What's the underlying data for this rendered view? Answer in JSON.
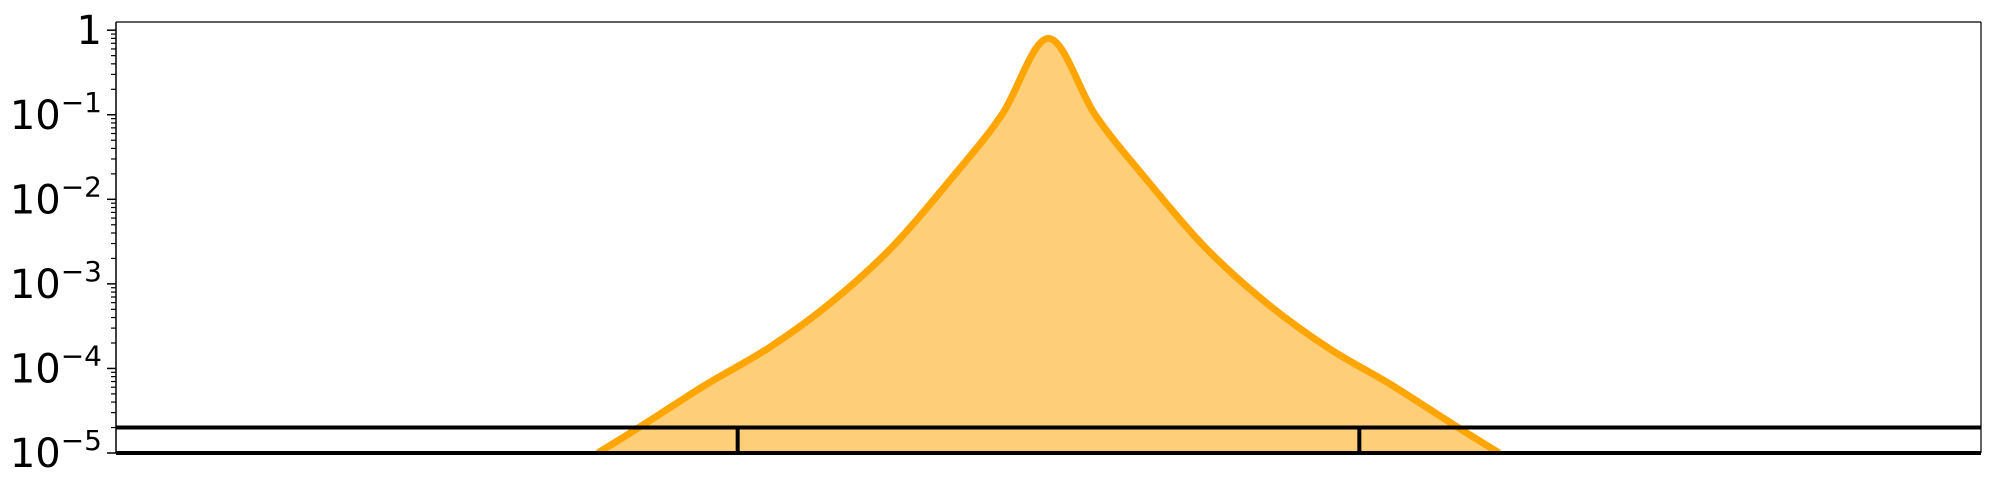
{
  "chart_data": {
    "type": "area",
    "title": "",
    "xlabel": "",
    "ylabel": "",
    "y_scale": "log",
    "ylim": [
      1e-05,
      1.25
    ],
    "xlim": [
      -3,
      3
    ],
    "grid": false,
    "y_ticks": [
      {
        "value": 1,
        "base": "1",
        "exponent": ""
      },
      {
        "value": 0.1,
        "base": "10",
        "exponent": "−1"
      },
      {
        "value": 0.01,
        "base": "10",
        "exponent": "−2"
      },
      {
        "value": 0.001,
        "base": "10",
        "exponent": "−3"
      },
      {
        "value": 0.0001,
        "base": "10",
        "exponent": "−4"
      },
      {
        "value": 1e-05,
        "base": "10",
        "exponent": "−5"
      }
    ],
    "series": [
      {
        "color": "#FFA500",
        "fill_color": "#FECE79",
        "x": [
          -1.45,
          -1.3,
          -1.1,
          -0.9,
          -0.7,
          -0.5,
          -0.3,
          -0.15,
          0,
          0.15,
          0.3,
          0.5,
          0.7,
          0.9,
          1.1,
          1.3,
          1.45
        ],
        "y": [
          1e-05,
          2.2e-05,
          6.5e-05,
          0.000175,
          0.0006,
          0.0028,
          0.02,
          0.1,
          0.8,
          0.1,
          0.02,
          0.0028,
          0.0006,
          0.000175,
          6.5e-05,
          2.2e-05,
          1e-05
        ]
      }
    ],
    "bottom_scale": {
      "color": "#000000",
      "band_value": 2e-05,
      "divider_x": [
        -1,
        1
      ]
    }
  }
}
